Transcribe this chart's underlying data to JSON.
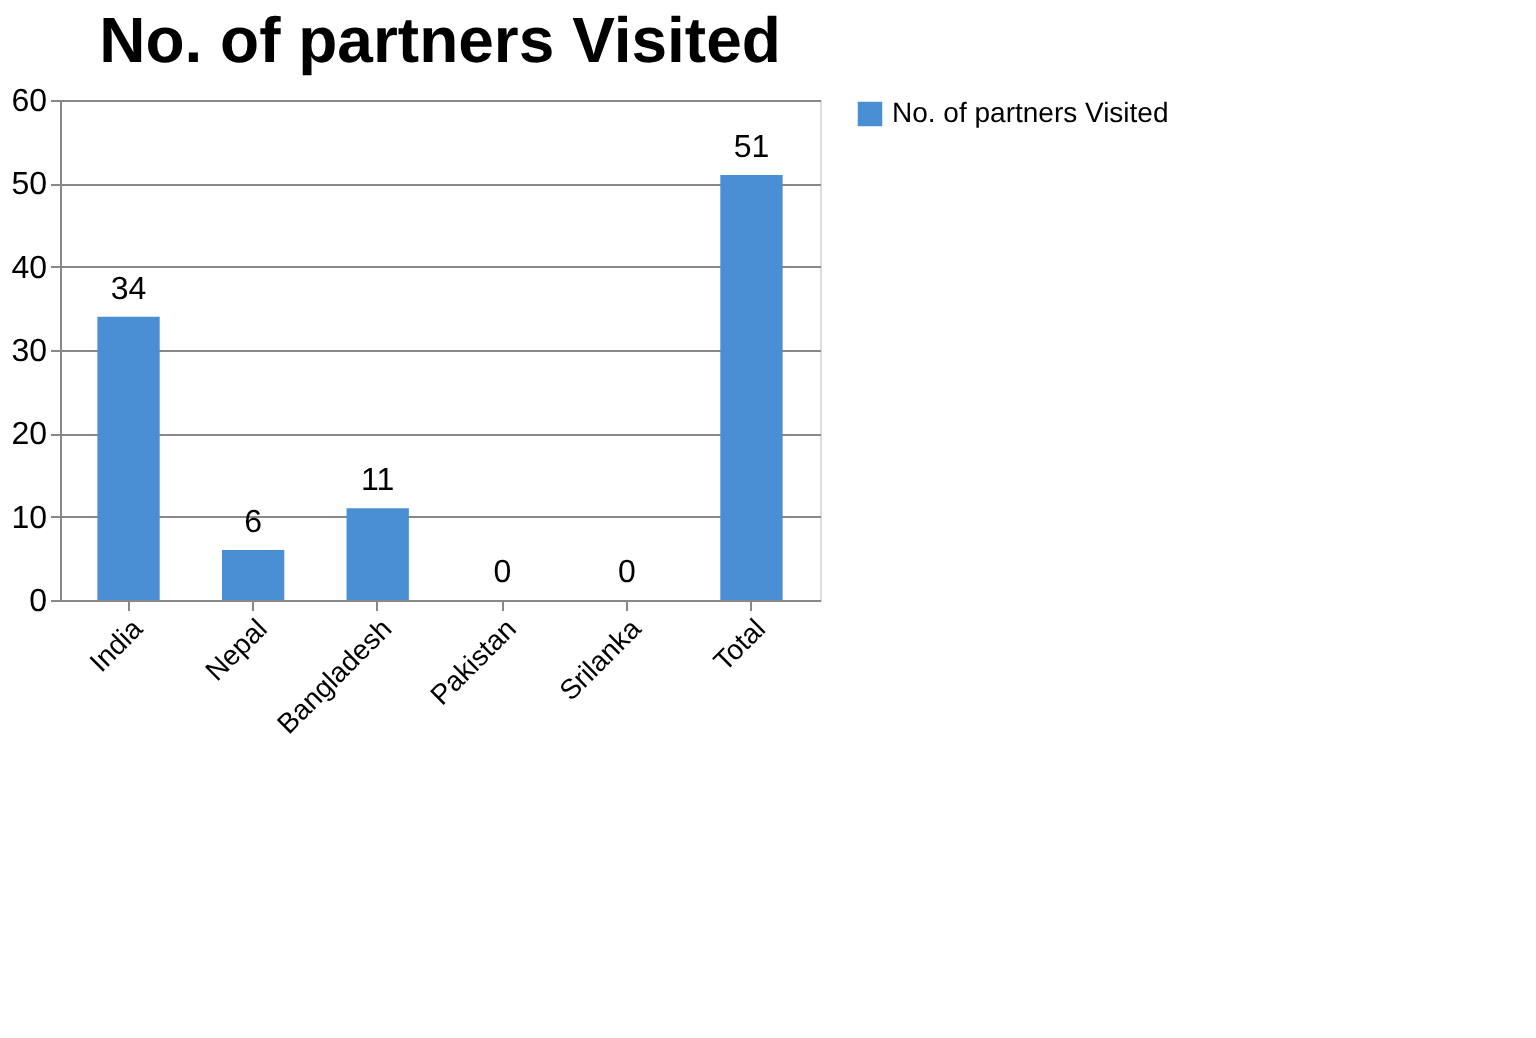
{
  "chart_data": {
    "type": "bar",
    "title": "No. of partners Visited",
    "categories": [
      "India",
      "Nepal",
      "Bangladesh",
      "Pakistan",
      "Srilanka",
      "Total"
    ],
    "series": [
      {
        "name": "No. of partners Visited",
        "color": "#4a8fd4",
        "values": [
          34,
          6,
          11,
          0,
          0,
          51
        ]
      }
    ],
    "ylim": [
      0,
      60
    ],
    "yticks": [
      0,
      10,
      20,
      30,
      40,
      50,
      60
    ],
    "grid": "y",
    "legend": "right",
    "data_labels": true
  }
}
